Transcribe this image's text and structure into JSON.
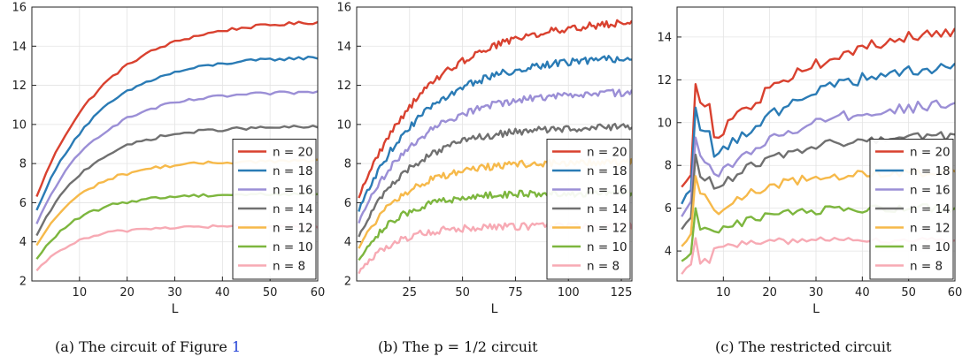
{
  "chart_data": [
    {
      "type": "line",
      "caption": "(a) The circuit of Figure",
      "caption_ref": "1",
      "xlabel": "L",
      "ylabel": "",
      "xlim": [
        0,
        60
      ],
      "ylim": [
        2,
        16
      ],
      "xticks": [
        10,
        20,
        30,
        40,
        50,
        60
      ],
      "yticks": [
        2,
        4,
        6,
        8,
        10,
        12,
        14,
        16
      ],
      "grid": true,
      "legend_position": "lower-right",
      "series": [
        {
          "name": "n = 20",
          "color": "#d9412f",
          "start": 6.3,
          "plateau": 15.35,
          "rate": 14,
          "noise": 0.08,
          "x": [
            1,
            60
          ]
        },
        {
          "name": "n = 18",
          "color": "#2a7bb5",
          "start": 5.6,
          "plateau": 13.5,
          "rate": 13,
          "noise": 0.08,
          "x": [
            1,
            60
          ]
        },
        {
          "name": "n = 16",
          "color": "#9b8fd6",
          "start": 4.9,
          "plateau": 11.7,
          "rate": 12,
          "noise": 0.08,
          "x": [
            1,
            60
          ]
        },
        {
          "name": "n = 14",
          "color": "#707070",
          "start": 4.3,
          "plateau": 9.9,
          "rate": 11,
          "noise": 0.08,
          "x": [
            1,
            60
          ]
        },
        {
          "name": "n = 12",
          "color": "#f6b94a",
          "start": 3.8,
          "plateau": 8.15,
          "rate": 10,
          "noise": 0.08,
          "x": [
            1,
            60
          ]
        },
        {
          "name": "n = 10",
          "color": "#7db63e",
          "start": 3.1,
          "plateau": 6.45,
          "rate": 9,
          "noise": 0.08,
          "x": [
            1,
            60
          ]
        },
        {
          "name": "n = 8",
          "color": "#f7aab4",
          "start": 2.5,
          "plateau": 4.8,
          "rate": 8,
          "noise": 0.08,
          "x": [
            1,
            60
          ]
        }
      ]
    },
    {
      "type": "line",
      "caption": "(b) The p = 1/2 circuit",
      "xlabel": "L",
      "ylabel": "",
      "xlim": [
        0,
        130
      ],
      "ylim": [
        2,
        16
      ],
      "xticks": [
        25,
        50,
        75,
        100,
        125
      ],
      "yticks": [
        2,
        4,
        6,
        8,
        10,
        12,
        14,
        16
      ],
      "grid": true,
      "legend_position": "lower-right",
      "series": [
        {
          "name": "n = 20",
          "color": "#d9412f",
          "start": 6.3,
          "plateau": 15.4,
          "rate": 34,
          "noise": 0.18,
          "x": [
            1,
            130
          ]
        },
        {
          "name": "n = 18",
          "color": "#2a7bb5",
          "start": 5.6,
          "plateau": 13.5,
          "rate": 31,
          "noise": 0.18,
          "x": [
            1,
            130
          ]
        },
        {
          "name": "n = 16",
          "color": "#9b8fd6",
          "start": 5.0,
          "plateau": 11.7,
          "rate": 28,
          "noise": 0.18,
          "x": [
            1,
            130
          ]
        },
        {
          "name": "n = 14",
          "color": "#707070",
          "start": 4.3,
          "plateau": 9.9,
          "rate": 25,
          "noise": 0.18,
          "x": [
            1,
            130
          ]
        },
        {
          "name": "n = 12",
          "color": "#f6b94a",
          "start": 3.7,
          "plateau": 8.1,
          "rate": 22,
          "noise": 0.18,
          "x": [
            1,
            130
          ]
        },
        {
          "name": "n = 10",
          "color": "#7db63e",
          "start": 3.1,
          "plateau": 6.5,
          "rate": 19,
          "noise": 0.18,
          "x": [
            1,
            130
          ]
        },
        {
          "name": "n = 8",
          "color": "#f7aab4",
          "start": 2.4,
          "plateau": 4.8,
          "rate": 16,
          "noise": 0.18,
          "x": [
            1,
            130
          ]
        }
      ]
    },
    {
      "type": "line",
      "caption": "(c) The restricted circuit",
      "xlabel": "L",
      "ylabel": "",
      "xlim": [
        0,
        60
      ],
      "ylim": [
        2.6,
        15.4
      ],
      "xticks": [
        10,
        20,
        30,
        40,
        50,
        60
      ],
      "yticks": [
        4,
        6,
        8,
        10,
        12,
        14
      ],
      "grid": true,
      "legend_position": "lower-right",
      "series": [
        {
          "name": "n = 20",
          "color": "#d9412f",
          "start": 7.0,
          "plateau": 14.8,
          "rate": 22,
          "noise": 0.28,
          "spike": 11.8,
          "x": [
            1,
            60
          ]
        },
        {
          "name": "n = 18",
          "color": "#2a7bb5",
          "start": 6.2,
          "plateau": 13.0,
          "rate": 20,
          "noise": 0.28,
          "spike": 10.7,
          "x": [
            1,
            60
          ]
        },
        {
          "name": "n = 16",
          "color": "#9b8fd6",
          "start": 5.6,
          "plateau": 11.0,
          "rate": 17,
          "noise": 0.25,
          "spike": 9.3,
          "x": [
            1,
            60
          ]
        },
        {
          "name": "n = 14",
          "color": "#707070",
          "start": 5.0,
          "plateau": 9.45,
          "rate": 14,
          "noise": 0.22,
          "spike": 8.5,
          "x": [
            1,
            60
          ]
        },
        {
          "name": "n = 12",
          "color": "#f6b94a",
          "start": 4.2,
          "plateau": 7.7,
          "rate": 12,
          "noise": 0.22,
          "spike": 7.5,
          "x": [
            1,
            60
          ]
        },
        {
          "name": "n = 10",
          "color": "#7db63e",
          "start": 3.5,
          "plateau": 6.0,
          "rate": 10,
          "noise": 0.2,
          "spike": 6.0,
          "x": [
            1,
            60
          ]
        },
        {
          "name": "n = 8",
          "color": "#f7aab4",
          "start": 2.9,
          "plateau": 4.5,
          "rate": 6,
          "noise": 0.15,
          "spike": 4.6,
          "x": [
            1,
            60
          ]
        }
      ]
    }
  ]
}
